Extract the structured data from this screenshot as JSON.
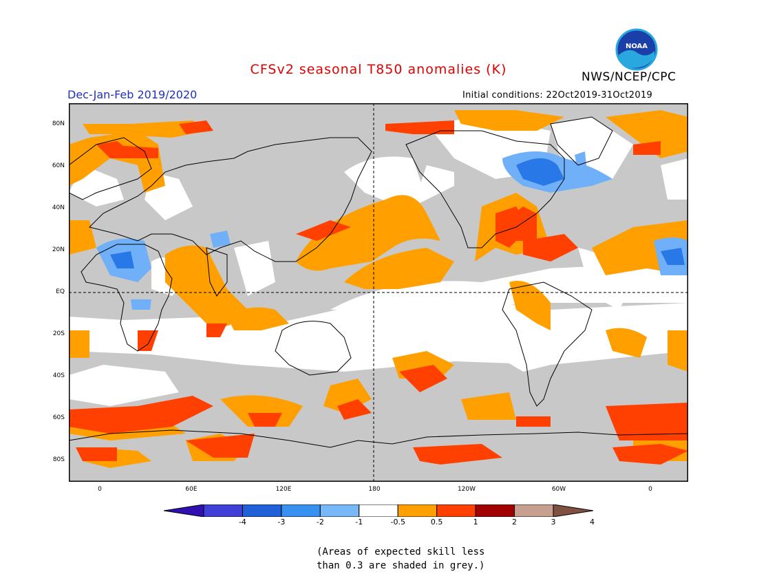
{
  "title": "CFSv2 seasonal T850 anomalies (K)",
  "org": "NWS/NCEP/CPC",
  "season": "Dec-Jan-Feb 2019/2020",
  "initial_conditions": "Initial conditions: 22Oct2019-31Oct2019",
  "logo_text": "NOAA",
  "lat_labels": [
    "80N",
    "60N",
    "40N",
    "20N",
    "EQ",
    "20S",
    "40S",
    "60S",
    "80S"
  ],
  "lon_labels": [
    "0",
    "60E",
    "120E",
    "180",
    "120W",
    "60W",
    "0"
  ],
  "colorbar": {
    "labels": [
      "-4",
      "-3",
      "-2",
      "-1",
      "-0.5",
      "0.5",
      "1",
      "2",
      "3",
      "4"
    ],
    "colors": [
      "#3010b0",
      "#4040d8",
      "#2060d8",
      "#3890f0",
      "#78b8f8",
      "#ffffff",
      "#ff9f00",
      "#ff4000",
      "#a00000",
      "#c8a090",
      "#805040"
    ]
  },
  "legend_note": [
    "(Areas of expected skill less",
    "than 0.3 are shaded in grey.)"
  ],
  "colors": {
    "grey": "#c8c8c8",
    "orange": "#ff9f00",
    "red": "#ff4000",
    "blue_light": "#70b0f8",
    "blue": "#2878e8",
    "title": "#e00000",
    "season": "#2030c0"
  }
}
